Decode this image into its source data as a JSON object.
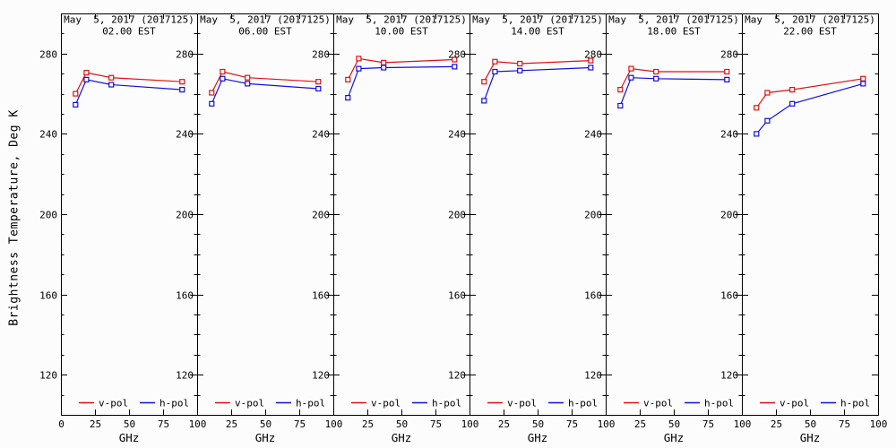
{
  "figure": {
    "background": "#fcfcfc",
    "axis_color": "#000000"
  },
  "chart_data": {
    "type": "line",
    "xlabel": "GHz",
    "ylabel": "Brightness Temperature, Deg K",
    "x": [
      10.7,
      18.7,
      37.0,
      89.0
    ],
    "xlim": [
      0,
      100
    ],
    "ylim": [
      100,
      300
    ],
    "x_ticks": [
      0,
      25,
      50,
      75,
      100
    ],
    "y_ticks": [
      120,
      160,
      200,
      240,
      280
    ],
    "y_minor_step": 10,
    "grid": "off",
    "legend_position": "bottom-inside-each-panel",
    "legend": [
      {
        "name": "v-pol",
        "color": "#e01010"
      },
      {
        "name": "h-pol",
        "color": "#1010e0"
      }
    ],
    "panels": [
      {
        "date": "May  5, 2017 (2017125)",
        "time": "02.00 EST",
        "series": [
          {
            "name": "v-pol",
            "color": "#e01010",
            "values": [
              260,
              270.5,
              268,
              266
            ]
          },
          {
            "name": "h-pol",
            "color": "#1010e0",
            "values": [
              254.5,
              267,
              264.5,
              262
            ]
          }
        ]
      },
      {
        "date": "May  5, 2017 (2017125)",
        "time": "06.00 EST",
        "series": [
          {
            "name": "v-pol",
            "color": "#e01010",
            "values": [
              260.5,
              271,
              268,
              266
            ]
          },
          {
            "name": "h-pol",
            "color": "#1010e0",
            "values": [
              255,
              267.5,
              265,
              262.5
            ]
          }
        ]
      },
      {
        "date": "May  5, 2017 (2017125)",
        "time": "10.00 EST",
        "series": [
          {
            "name": "v-pol",
            "color": "#e01010",
            "values": [
              267,
              277.5,
              275.5,
              277
            ]
          },
          {
            "name": "h-pol",
            "color": "#1010e0",
            "values": [
              258,
              272.5,
              273,
              273.5
            ]
          }
        ]
      },
      {
        "date": "May  5, 2017 (2017125)",
        "time": "14.00 EST",
        "series": [
          {
            "name": "v-pol",
            "color": "#e01010",
            "values": [
              266,
              276,
              275,
              276.5
            ]
          },
          {
            "name": "h-pol",
            "color": "#1010e0",
            "values": [
              256.5,
              271,
              271.5,
              273
            ]
          }
        ]
      },
      {
        "date": "May  5, 2017 (2017125)",
        "time": "18.00 EST",
        "series": [
          {
            "name": "v-pol",
            "color": "#e01010",
            "values": [
              262,
              272.5,
              271,
              271
            ]
          },
          {
            "name": "h-pol",
            "color": "#1010e0",
            "values": [
              254,
              268,
              267.5,
              267
            ]
          }
        ]
      },
      {
        "date": "May  5, 2017 (2017125)",
        "time": "22.00 EST",
        "series": [
          {
            "name": "v-pol",
            "color": "#e01010",
            "values": [
              253,
              260.5,
              262,
              267.5
            ]
          },
          {
            "name": "h-pol",
            "color": "#1010e0",
            "values": [
              240,
              246.5,
              255,
              265
            ]
          }
        ]
      }
    ]
  }
}
